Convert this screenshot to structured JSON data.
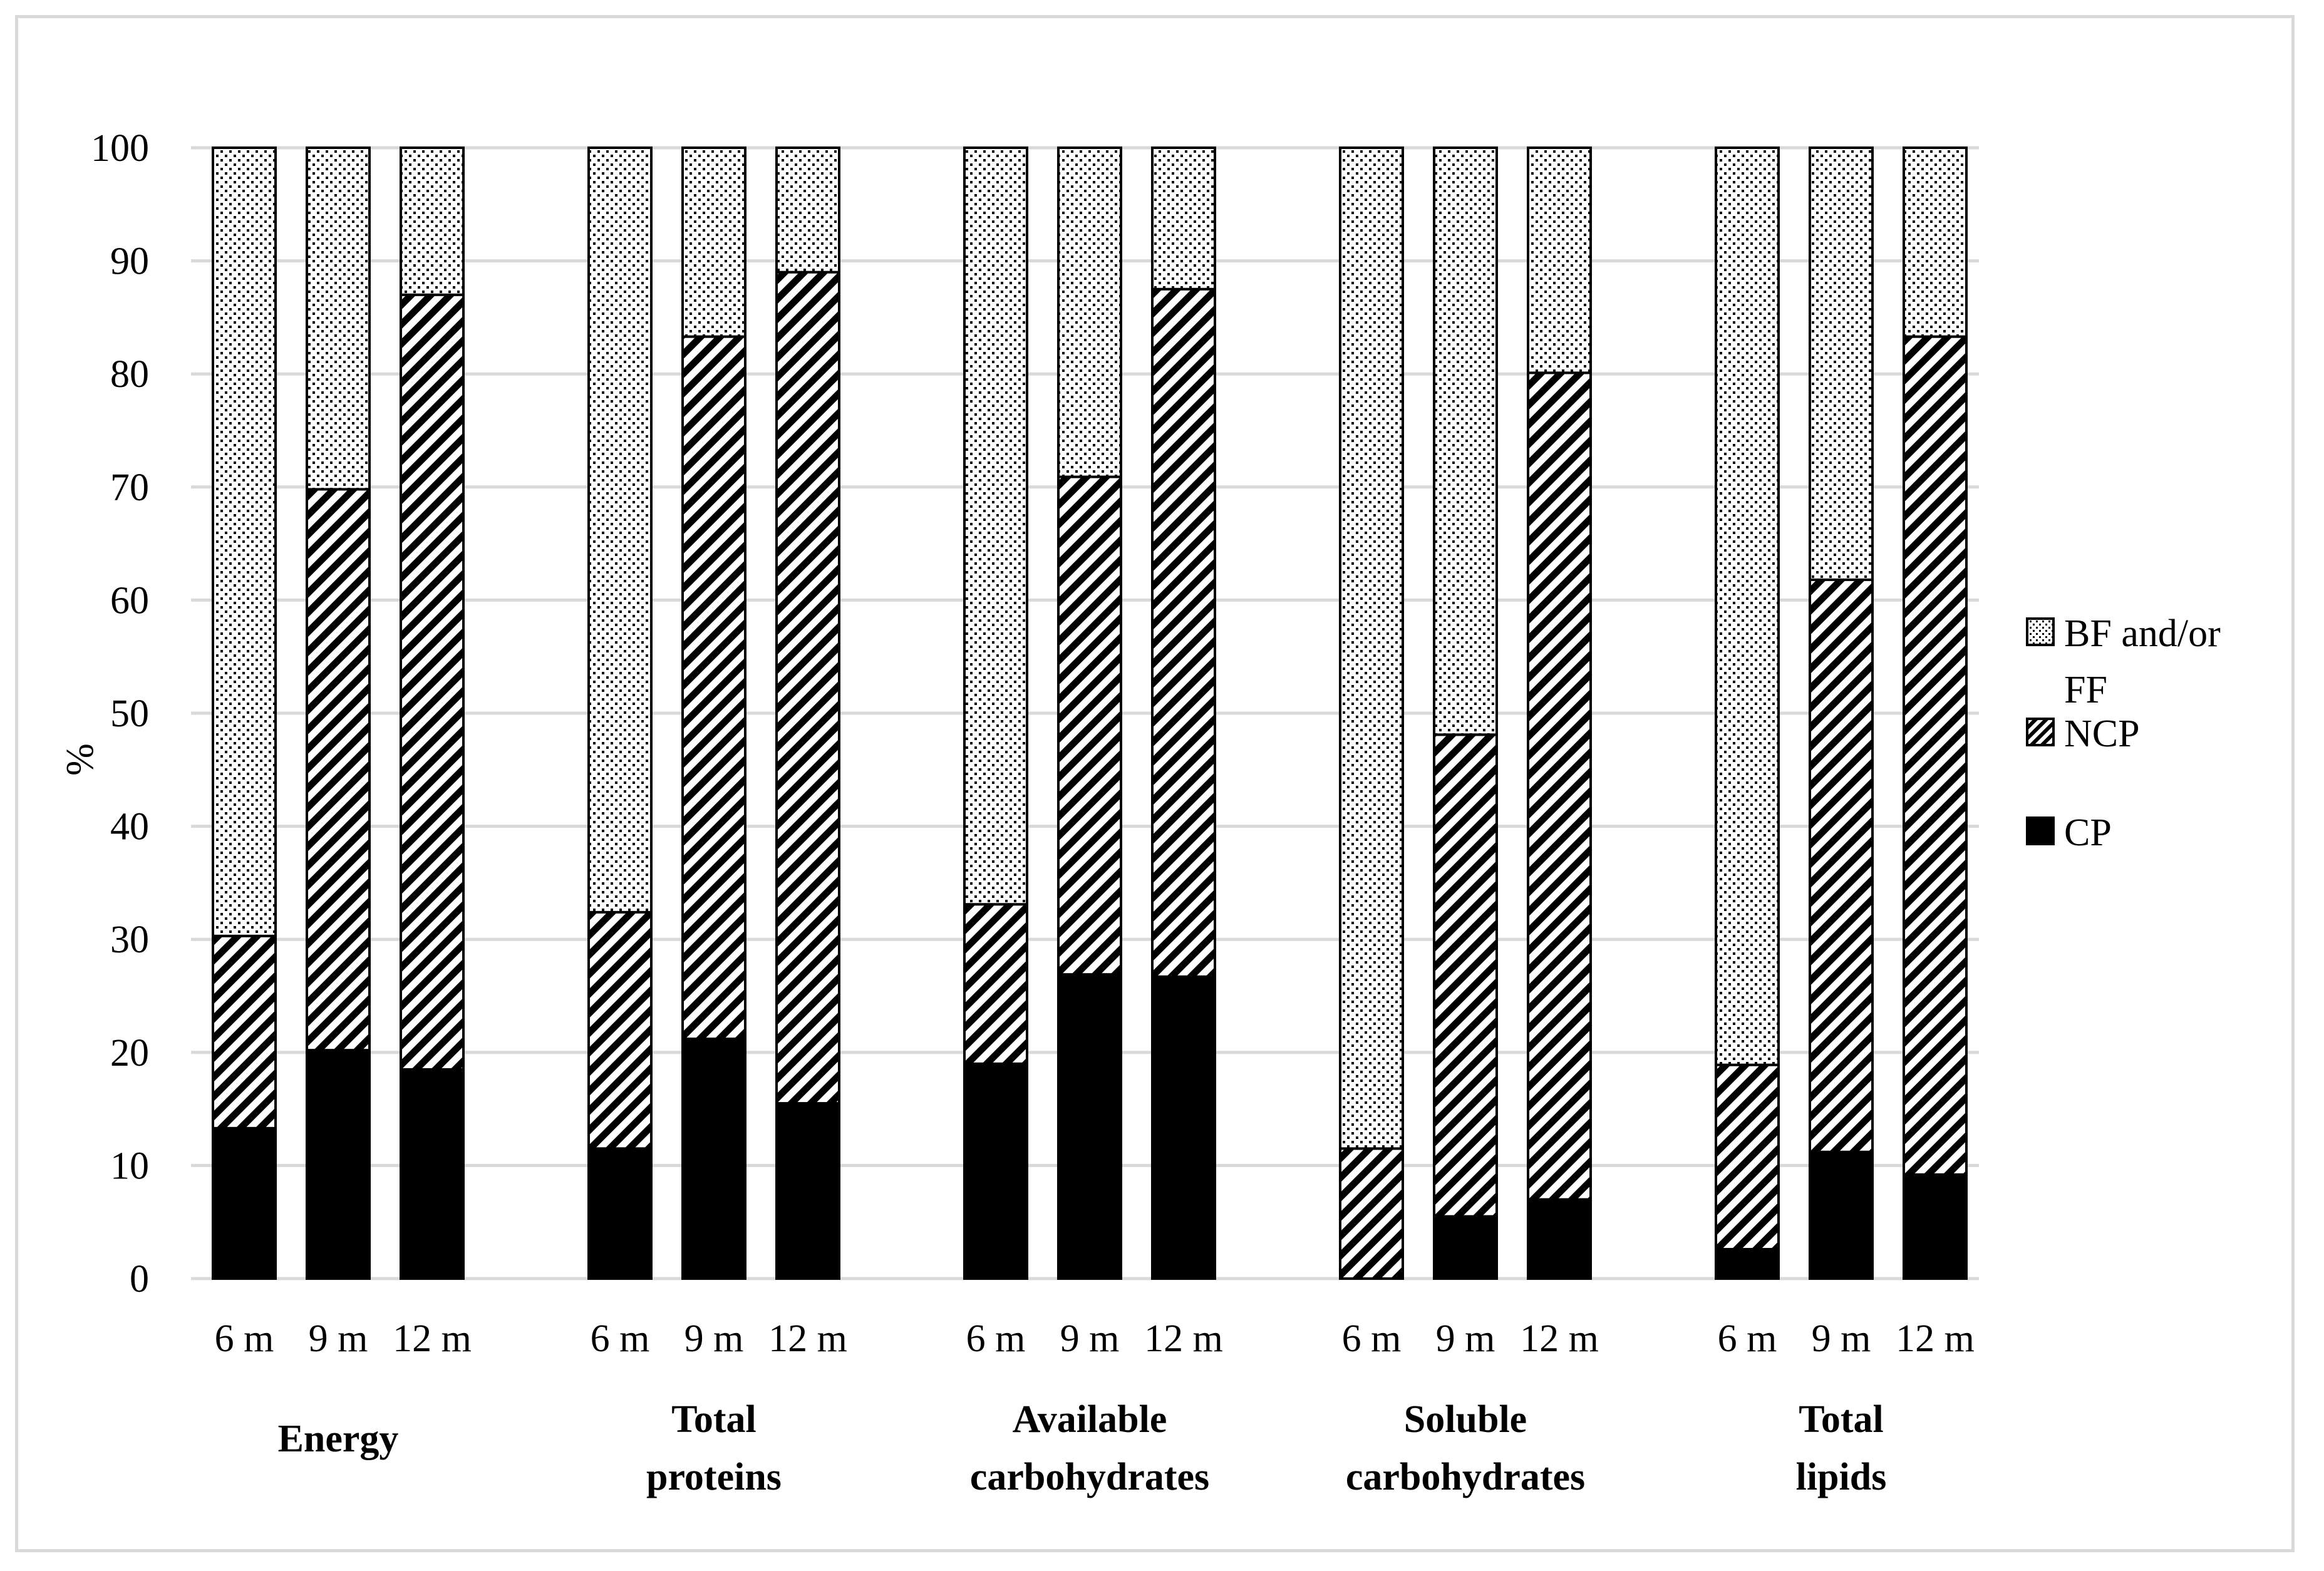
{
  "chart_data": {
    "type": "bar",
    "stacked": true,
    "ylabel": "%",
    "ylim": [
      0,
      100
    ],
    "yticks": [
      0,
      10,
      20,
      30,
      40,
      50,
      60,
      70,
      80,
      90,
      100
    ],
    "grid": true,
    "legend_position": "right",
    "groups": [
      {
        "label": [
          "Energy"
        ],
        "categories": [
          "6 m",
          "9 m",
          "12 m"
        ]
      },
      {
        "label": [
          "Total",
          "proteins"
        ],
        "categories": [
          "6 m",
          "9 m",
          "12 m"
        ]
      },
      {
        "label": [
          "Available",
          "carbohydrates"
        ],
        "categories": [
          "6 m",
          "9 m",
          "12 m"
        ]
      },
      {
        "label": [
          "Soluble",
          "carbohydrates"
        ],
        "categories": [
          "6 m",
          "9 m",
          "12 m"
        ]
      },
      {
        "label": [
          "Total",
          "lipids"
        ],
        "categories": [
          "6 m",
          "9 m",
          "12 m"
        ]
      }
    ],
    "series": [
      {
        "name": "CP",
        "pattern": "solid",
        "values": [
          13.3,
          20.2,
          18.5,
          11.5,
          21.2,
          15.5,
          19.0,
          26.9,
          26.7,
          0.0,
          5.5,
          7.0,
          2.6,
          11.2,
          9.2
        ]
      },
      {
        "name": "NCP",
        "pattern": "diagonal",
        "values": [
          17.0,
          49.6,
          68.5,
          20.9,
          62.1,
          73.5,
          14.1,
          44.0,
          60.8,
          11.5,
          42.6,
          73.1,
          16.3,
          50.6,
          74.1
        ]
      },
      {
        "name": "BF and/or FF",
        "pattern": "dotted",
        "values": [
          69.7,
          30.2,
          13.0,
          67.6,
          16.7,
          11.0,
          66.9,
          29.1,
          12.5,
          88.5,
          51.9,
          19.9,
          81.1,
          38.2,
          16.7
        ]
      }
    ],
    "colors": {
      "axis": "#000000",
      "grid": "#d9d9d9",
      "bar": "#000000"
    }
  }
}
